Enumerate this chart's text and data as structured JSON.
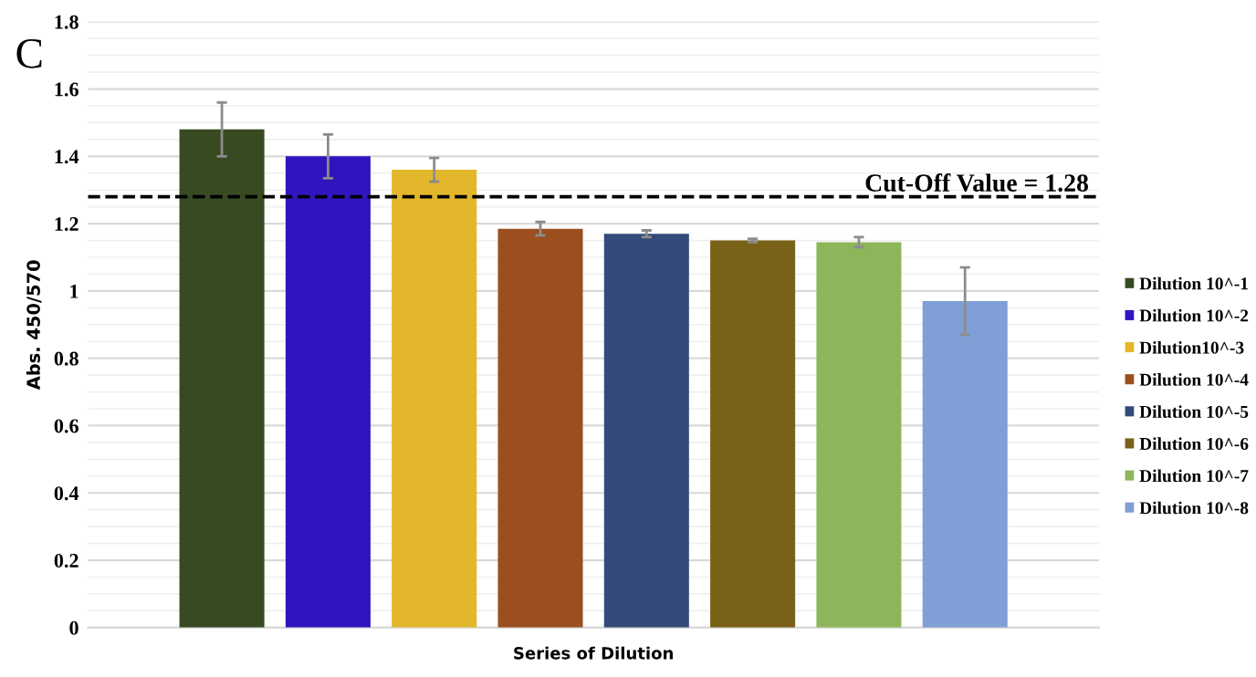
{
  "chart_data": {
    "type": "bar",
    "xlabel": "Series of Dilution",
    "ylabel": "Abs. 450/570",
    "categories": [
      null
    ],
    "series": [
      {
        "name": "Dilution 10^-1",
        "color": "#374a21",
        "values": [
          1.48
        ],
        "errors": [
          0.08
        ]
      },
      {
        "name": "Dilution 10^-2",
        "color": "#3214be",
        "values": [
          1.4
        ],
        "errors": [
          0.065
        ]
      },
      {
        "name": "Dilution10^-3",
        "color": "#e3b72b",
        "values": [
          1.36
        ],
        "errors": [
          0.035
        ]
      },
      {
        "name": "Dilution 10^-4",
        "color": "#9b4f1e",
        "values": [
          1.185
        ],
        "errors": [
          0.02
        ]
      },
      {
        "name": "Dilution 10^-5",
        "color": "#334a7a",
        "values": [
          1.17
        ],
        "errors": [
          0.01
        ]
      },
      {
        "name": "Dilution 10^-6",
        "color": "#7a6118",
        "values": [
          1.15
        ],
        "errors": [
          0.005
        ]
      },
      {
        "name": "Dilution 10^-7",
        "color": "#8db65a",
        "values": [
          1.145
        ],
        "errors": [
          0.015
        ]
      },
      {
        "name": "Dilution 10^-8",
        "color": "#7f9fd6",
        "values": [
          0.97
        ],
        "errors": [
          0.1
        ]
      }
    ],
    "ylim": [
      0,
      1.8
    ],
    "yticks": [
      0,
      0.2,
      0.4,
      0.6,
      0.8,
      1,
      1.2,
      1.4,
      1.6,
      1.8
    ],
    "ref_lines": [
      {
        "axis": "y",
        "value": 1.28,
        "label": "Cut-Off Value = 1.28",
        "color": "#000000",
        "line_style": "dashed"
      }
    ],
    "annotations": [
      "C"
    ],
    "grid": "y",
    "legend": "right"
  }
}
